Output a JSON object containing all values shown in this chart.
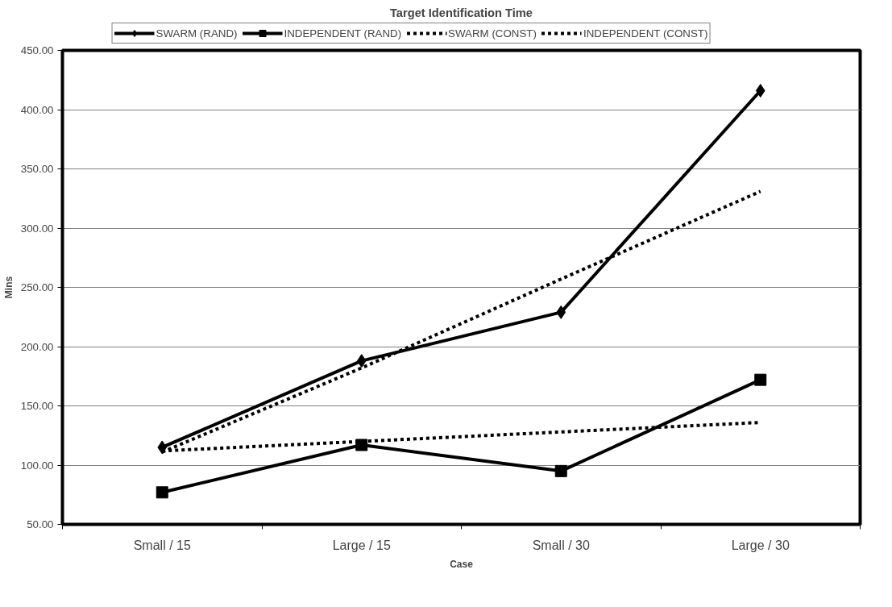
{
  "chart_data": {
    "type": "line",
    "title": "Target Identification Time",
    "xlabel": "Case",
    "ylabel": "Mins",
    "categories": [
      "Small / 15",
      "Large / 15",
      "Small / 30",
      "Large / 30"
    ],
    "series": [
      {
        "name": "SWARM (RAND)",
        "color": "#000000",
        "values": [
          115,
          188,
          229,
          416
        ],
        "marker": "diamond",
        "line_style": "solid"
      },
      {
        "name": "INDEPENDENT (RAND)",
        "color": "#000000",
        "values": [
          77,
          117,
          95,
          172
        ],
        "marker": "square",
        "line_style": "solid"
      },
      {
        "name": "SWARM (CONST)",
        "color": "#000000",
        "values": [
          111,
          182,
          257,
          331
        ],
        "marker": "none",
        "line_style": "dashed"
      },
      {
        "name": "INDEPENDENT (CONST)",
        "color": "#000000",
        "values": [
          112,
          120,
          128,
          136
        ],
        "marker": "none",
        "line_style": "dashed"
      }
    ],
    "ylim": [
      50,
      450
    ],
    "yticks": [
      {
        "value": 50,
        "label": "50.00"
      },
      {
        "value": 100,
        "label": "100.00"
      },
      {
        "value": 150,
        "label": "150.00"
      },
      {
        "value": 200,
        "label": "200.00"
      },
      {
        "value": 250,
        "label": "250.00"
      },
      {
        "value": 300,
        "label": "300.00"
      },
      {
        "value": 350,
        "label": "350.00"
      },
      {
        "value": 400,
        "label": "400.00"
      },
      {
        "value": 450,
        "label": "450.00"
      }
    ],
    "grid": "y",
    "legend": "top"
  }
}
